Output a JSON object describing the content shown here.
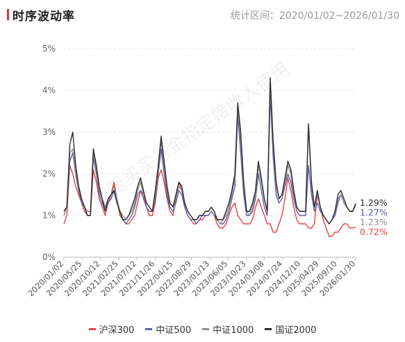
{
  "header": {
    "title": "时序波动率",
    "range_label": "统计区间：2020/01/02~2026/01/30"
  },
  "watermark": "仅限买买基金指定接收人使用",
  "chart_data": {
    "type": "line",
    "ylim": [
      0,
      5
    ],
    "y_ticks": [
      "0%",
      "1%",
      "2%",
      "3%",
      "4%",
      "5%"
    ],
    "x_ticks": [
      "2020/01/02",
      "2020/05/25",
      "2020/10/12",
      "2021/02/25",
      "2021/07/12",
      "2021/11/26",
      "2022/04/15",
      "2022/08/29",
      "2023/01/13",
      "2023/06/05",
      "2023/10/23",
      "2024/03/08",
      "2024/07/24",
      "2024/12/10",
      "2025/04/29",
      "2025/09/10",
      "2026/01/30"
    ],
    "series": [
      {
        "name": "沪深300",
        "color": "#e8413e",
        "end_label": "0.72%",
        "values": [
          0.8,
          1.0,
          2.2,
          2.0,
          1.7,
          1.5,
          1.3,
          1.1,
          1.0,
          1.0,
          2.1,
          1.8,
          1.4,
          1.2,
          1.0,
          1.3,
          1.5,
          1.8,
          1.4,
          1.0,
          0.9,
          0.8,
          0.8,
          0.9,
          1.0,
          1.3,
          1.6,
          1.5,
          1.2,
          1.0,
          1.0,
          1.3,
          1.9,
          2.1,
          1.8,
          1.4,
          1.1,
          1.0,
          1.4,
          1.8,
          1.6,
          1.2,
          1.0,
          0.9,
          0.8,
          0.8,
          0.9,
          0.9,
          1.0,
          1.0,
          1.1,
          1.0,
          0.8,
          0.7,
          0.7,
          0.8,
          1.0,
          1.2,
          1.3,
          1.0,
          0.9,
          0.8,
          0.8,
          0.8,
          0.9,
          1.2,
          1.4,
          1.2,
          1.0,
          0.8,
          0.8,
          0.6,
          0.6,
          0.8,
          1.0,
          1.4,
          1.9,
          1.6,
          1.2,
          0.9,
          0.8,
          0.8,
          0.8,
          0.7,
          0.7,
          0.8,
          1.5,
          1.2,
          0.9,
          0.7,
          0.5,
          0.5,
          0.6,
          0.6,
          0.7,
          0.8,
          0.8,
          0.7,
          0.7,
          0.72
        ]
      },
      {
        "name": "中证500",
        "color": "#5b5ea6",
        "end_label": "1.27%",
        "values": [
          1.0,
          1.2,
          2.3,
          2.5,
          2.0,
          1.6,
          1.3,
          1.2,
          1.1,
          1.1,
          2.4,
          2.0,
          1.5,
          1.3,
          1.1,
          1.3,
          1.4,
          1.6,
          1.3,
          1.1,
          0.9,
          0.8,
          0.9,
          1.0,
          1.2,
          1.5,
          1.6,
          1.4,
          1.2,
          1.1,
          1.1,
          1.4,
          2.0,
          2.6,
          2.0,
          1.5,
          1.2,
          1.1,
          1.3,
          1.6,
          1.5,
          1.2,
          1.0,
          0.9,
          0.9,
          0.8,
          0.9,
          1.0,
          1.0,
          1.0,
          1.1,
          1.0,
          0.9,
          0.8,
          0.8,
          0.9,
          1.1,
          1.4,
          1.7,
          3.4,
          2.5,
          1.5,
          1.0,
          1.0,
          1.1,
          1.4,
          2.0,
          1.6,
          1.2,
          1.0,
          3.9,
          2.4,
          1.5,
          1.3,
          1.4,
          1.7,
          2.0,
          1.8,
          1.4,
          1.1,
          1.0,
          1.0,
          1.0,
          2.2,
          1.5,
          1.1,
          1.3,
          1.1,
          1.0,
          0.9,
          0.8,
          0.9,
          1.0,
          1.3,
          1.5,
          1.3,
          1.2,
          1.1,
          1.1,
          1.27
        ]
      },
      {
        "name": "中证1000",
        "color": "#909090",
        "end_label": "1.23%",
        "values": [
          1.0,
          1.2,
          2.5,
          2.6,
          2.1,
          1.7,
          1.4,
          1.2,
          1.1,
          1.1,
          2.5,
          2.1,
          1.6,
          1.4,
          1.2,
          1.4,
          1.5,
          1.7,
          1.4,
          1.1,
          1.0,
          0.9,
          1.0,
          1.1,
          1.3,
          1.6,
          1.8,
          1.5,
          1.3,
          1.2,
          1.1,
          1.5,
          2.1,
          2.8,
          2.2,
          1.6,
          1.3,
          1.2,
          1.4,
          1.7,
          1.6,
          1.3,
          1.1,
          1.0,
          0.9,
          0.9,
          1.0,
          1.0,
          1.1,
          1.1,
          1.2,
          1.1,
          0.9,
          0.8,
          0.9,
          1.0,
          1.2,
          1.5,
          1.9,
          3.6,
          2.8,
          1.7,
          1.1,
          1.0,
          1.2,
          1.5,
          2.2,
          1.8,
          1.4,
          1.1,
          4.2,
          2.7,
          1.7,
          1.4,
          1.5,
          1.8,
          2.2,
          2.0,
          1.5,
          1.2,
          1.1,
          1.1,
          1.1,
          3.1,
          1.7,
          1.2,
          1.5,
          1.2,
          1.0,
          0.9,
          0.8,
          0.9,
          1.1,
          1.4,
          1.5,
          1.3,
          1.2,
          1.1,
          1.1,
          1.23
        ]
      },
      {
        "name": "国证2000",
        "color": "#2b2b2b",
        "end_label": "1.29%",
        "values": [
          1.1,
          1.2,
          2.7,
          3.0,
          2.2,
          1.7,
          1.4,
          1.2,
          1.0,
          1.0,
          2.6,
          2.2,
          1.7,
          1.4,
          1.1,
          1.4,
          1.5,
          1.6,
          1.3,
          1.1,
          0.9,
          0.9,
          1.0,
          1.2,
          1.4,
          1.7,
          1.9,
          1.6,
          1.3,
          1.2,
          1.1,
          1.6,
          2.2,
          2.9,
          2.3,
          1.7,
          1.3,
          1.2,
          1.5,
          1.8,
          1.7,
          1.3,
          1.1,
          1.0,
          0.9,
          0.9,
          1.0,
          1.0,
          1.1,
          1.1,
          1.2,
          1.1,
          0.9,
          0.9,
          0.9,
          1.1,
          1.3,
          1.6,
          2.0,
          3.7,
          3.0,
          1.8,
          1.1,
          1.1,
          1.3,
          1.6,
          2.3,
          1.9,
          1.4,
          1.1,
          4.3,
          2.8,
          1.8,
          1.4,
          1.5,
          1.9,
          2.3,
          2.1,
          1.6,
          1.2,
          1.1,
          1.1,
          1.1,
          3.2,
          1.8,
          1.2,
          1.6,
          1.2,
          1.0,
          0.9,
          0.8,
          0.9,
          1.1,
          1.5,
          1.6,
          1.4,
          1.2,
          1.1,
          1.1,
          1.29
        ]
      }
    ],
    "grid": true,
    "legend_position": "bottom"
  }
}
